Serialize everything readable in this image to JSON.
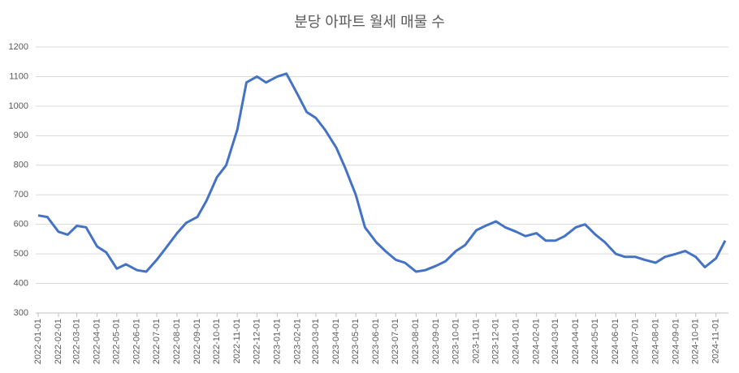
{
  "chart_data": {
    "type": "line",
    "title": "분당 아파트 월세 매물 수",
    "x": [
      "2022-01-01",
      "2022-01-15",
      "2022-02-01",
      "2022-02-15",
      "2022-03-01",
      "2022-03-15",
      "2022-04-01",
      "2022-04-15",
      "2022-05-01",
      "2022-05-15",
      "2022-06-01",
      "2022-06-15",
      "2022-07-01",
      "2022-07-15",
      "2022-08-01",
      "2022-08-15",
      "2022-09-01",
      "2022-09-15",
      "2022-10-01",
      "2022-10-15",
      "2022-11-01",
      "2022-11-15",
      "2022-12-01",
      "2022-12-15",
      "2023-01-01",
      "2023-01-15",
      "2023-02-01",
      "2023-02-15",
      "2023-03-01",
      "2023-03-15",
      "2023-04-01",
      "2023-04-15",
      "2023-05-01",
      "2023-05-15",
      "2023-06-01",
      "2023-06-15",
      "2023-07-01",
      "2023-07-15",
      "2023-08-01",
      "2023-08-15",
      "2023-09-01",
      "2023-09-15",
      "2023-10-01",
      "2023-10-15",
      "2023-11-01",
      "2023-11-15",
      "2023-12-01",
      "2023-12-15",
      "2024-01-01",
      "2024-01-15",
      "2024-02-01",
      "2024-02-15",
      "2024-03-01",
      "2024-03-15",
      "2024-04-01",
      "2024-04-15",
      "2024-05-01",
      "2024-05-15",
      "2024-06-01",
      "2024-06-15",
      "2024-07-01",
      "2024-07-15",
      "2024-08-01",
      "2024-08-15",
      "2024-09-01",
      "2024-09-15",
      "2024-10-01",
      "2024-10-15",
      "2024-11-01",
      "2024-11-15"
    ],
    "series": [
      {
        "name": "매물 수",
        "color": "#4472c4",
        "values": [
          630,
          625,
          575,
          565,
          595,
          590,
          525,
          505,
          450,
          465,
          445,
          440,
          480,
          520,
          570,
          605,
          625,
          680,
          760,
          800,
          920,
          1080,
          1100,
          1080,
          1100,
          1110,
          1040,
          980,
          960,
          920,
          860,
          790,
          700,
          590,
          540,
          510,
          480,
          470,
          440,
          445,
          460,
          475,
          510,
          530,
          580,
          595,
          610,
          590,
          575,
          560,
          570,
          545,
          545,
          560,
          590,
          600,
          565,
          540,
          500,
          490,
          490,
          480,
          470,
          490,
          500,
          510,
          490,
          455,
          485,
          545
        ]
      }
    ],
    "xlim": [
      "2021-12-28",
      "2024-11-20"
    ],
    "xticks": [
      "2022-01-01",
      "2022-02-01",
      "2022-03-01",
      "2022-04-01",
      "2022-05-01",
      "2022-06-01",
      "2022-07-01",
      "2022-08-01",
      "2022-09-01",
      "2022-10-01",
      "2022-11-01",
      "2022-12-01",
      "2023-01-01",
      "2023-02-01",
      "2023-03-01",
      "2023-04-01",
      "2023-05-01",
      "2023-06-01",
      "2023-07-01",
      "2023-08-01",
      "2023-09-01",
      "2023-10-01",
      "2023-11-01",
      "2023-12-01",
      "2024-01-01",
      "2024-02-01",
      "2024-03-01",
      "2024-04-01",
      "2024-05-01",
      "2024-06-01",
      "2024-07-01",
      "2024-08-01",
      "2024-09-01",
      "2024-10-01",
      "2024-11-01"
    ],
    "ylim": [
      300,
      1200
    ],
    "yticks": [
      300,
      400,
      500,
      600,
      700,
      800,
      900,
      1000,
      1100,
      1200
    ],
    "grid": true
  }
}
